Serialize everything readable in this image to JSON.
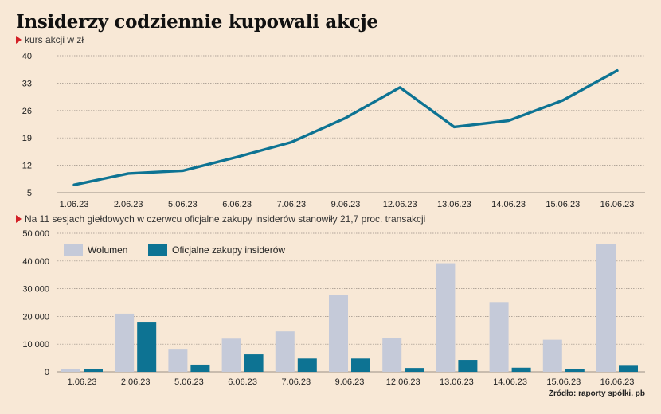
{
  "title": "Insiderzy codziennie kupowali akcje",
  "source": "Źródło: raporty spółki, pb",
  "colors": {
    "line": "#0d7393",
    "volume": "#c5cad9",
    "insider": "#0d7393",
    "grid": "#9a8f86",
    "marker": "#d32027"
  },
  "chart_data": [
    {
      "type": "line",
      "title": "",
      "ylabel": "kurs akcji w zł",
      "categories": [
        "1.06.23",
        "2.06.23",
        "5.06.23",
        "6.06.23",
        "7.06.23",
        "9.06.23",
        "12.06.23",
        "13.06.23",
        "14.06.23",
        "15.06.23",
        "16.06.23"
      ],
      "values": [
        7.0,
        9.9,
        10.6,
        14.1,
        17.9,
        24.1,
        31.9,
        21.8,
        23.4,
        28.6,
        36.2
      ],
      "ylim": [
        5,
        40
      ],
      "yticks": [
        5,
        12,
        19,
        26,
        33,
        40
      ],
      "grid": true
    },
    {
      "type": "bar",
      "title": "",
      "subtitle": "Na 11 sesjach giełdowych w czerwcu oficjalne zakupy insiderów stanowiły 21,7 proc. transakcji",
      "categories": [
        "1.06.23",
        "2.06.23",
        "5.06.23",
        "6.06.23",
        "7.06.23",
        "9.06.23",
        "12.06.23",
        "13.06.23",
        "14.06.23",
        "15.06.23",
        "16.06.23"
      ],
      "series": [
        {
          "name": "Wolumen",
          "values": [
            1000,
            21000,
            8300,
            12000,
            14600,
            27700,
            12100,
            39200,
            25200,
            11600,
            46000
          ]
        },
        {
          "name": "Oficjalne zakupy insiderów",
          "values": [
            900,
            17800,
            2600,
            6300,
            4800,
            4800,
            1400,
            4300,
            1500,
            1000,
            2200
          ]
        }
      ],
      "ylim": [
        0,
        50000
      ],
      "yticks": [
        0,
        10000,
        20000,
        30000,
        40000,
        50000
      ],
      "ytick_labels": [
        "0",
        "10 000",
        "20 000",
        "30 000",
        "40 000",
        "50 000"
      ],
      "legend": "top-left",
      "grid": true
    }
  ]
}
